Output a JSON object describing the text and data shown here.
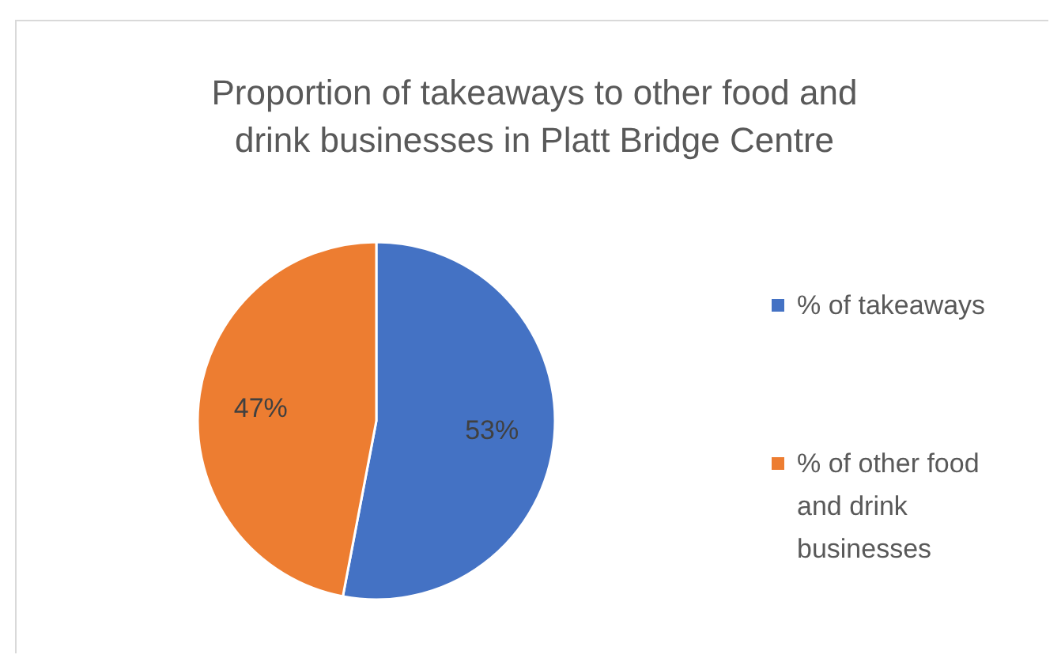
{
  "chart_data": {
    "type": "pie",
    "title": "Proportion of takeaways to other food and drink businesses in Platt Bridge Centre",
    "categories": [
      "% of takeaways",
      "% of other food and drink businesses"
    ],
    "values": [
      53,
      47
    ],
    "value_labels": [
      "53%",
      "47%"
    ],
    "colors": [
      "#4472c4",
      "#ed7d31"
    ],
    "legend": "right"
  }
}
